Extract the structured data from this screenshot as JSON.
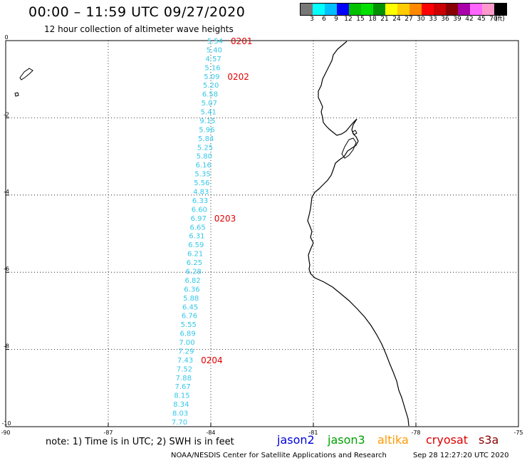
{
  "header": {
    "title": "00:00 – 11:59 UTC 09/27/2020",
    "subtitle": "12 hour collection of altimeter wave heights"
  },
  "colorbar": {
    "colors": [
      "#777777",
      "#00ffff",
      "#00bfff",
      "#0000ff",
      "#00c000",
      "#00e000",
      "#009000",
      "#ffff00",
      "#ffcc00",
      "#ff8800",
      "#ff0000",
      "#cc0000",
      "#880000",
      "#aa00aa",
      "#ff66ff",
      "#ff99cc",
      "#000000"
    ],
    "labels": [
      "3",
      "6",
      "9",
      "12",
      "15",
      "18",
      "21",
      "24",
      "27",
      "30",
      "33",
      "36",
      "39",
      "42",
      "45",
      "70",
      "(ft)"
    ]
  },
  "map": {
    "lon_range": [
      -90,
      -75
    ],
    "lat_range": [
      -10,
      0
    ],
    "lon_ticks": [
      "-90",
      "-87",
      "-84",
      "-81",
      "-78",
      "-75"
    ],
    "lat_ticks": [
      "0",
      "-2",
      "-4",
      "-6",
      "-8",
      "-10"
    ],
    "track_color": "#33c8e8",
    "wave_heights": [
      "5.54",
      "5.40",
      "4.57",
      "5.16",
      "5.09",
      "5.20",
      "6.58",
      "5.07",
      "5.41",
      "9.15",
      "5.96",
      "5.84",
      "5.25",
      "5.80",
      "6.16",
      "5.35",
      "5.56",
      "4.83",
      "6.33",
      "6.60",
      "6.97",
      "6.65",
      "6.31",
      "6.59",
      "6.21",
      "6.25",
      "6.28",
      "6.82",
      "6.36",
      "5.88",
      "6.45",
      "6.76",
      "5.55",
      "6.89",
      "7.00",
      "7.29",
      "7.43",
      "7.52",
      "7.88",
      "7.67",
      "8.15",
      "8.34",
      "8.03",
      "7.70"
    ],
    "time_labels": [
      {
        "text": "0201",
        "index": 0
      },
      {
        "text": "0202",
        "index": 4
      },
      {
        "text": "0203",
        "index": 20
      },
      {
        "text": "0204",
        "index": 36
      }
    ],
    "time_label_color": "#e00000"
  },
  "footer": {
    "note": "note: 1) Time is in UTC; 2) SWH is in feet",
    "missions": [
      {
        "name": "jason2",
        "color": "#0000dd"
      },
      {
        "name": "jason3",
        "color": "#00a000"
      },
      {
        "name": "altika",
        "color": "#ff9900"
      },
      {
        "name": "cryosat",
        "color": "#dd0000"
      },
      {
        "name": "s3a",
        "color": "#880000"
      }
    ],
    "credit": "NOAA/NESDIS Center for Satellite Applications and Research",
    "timestamp": "Sep 28 12:27:20 UTC 2020"
  }
}
